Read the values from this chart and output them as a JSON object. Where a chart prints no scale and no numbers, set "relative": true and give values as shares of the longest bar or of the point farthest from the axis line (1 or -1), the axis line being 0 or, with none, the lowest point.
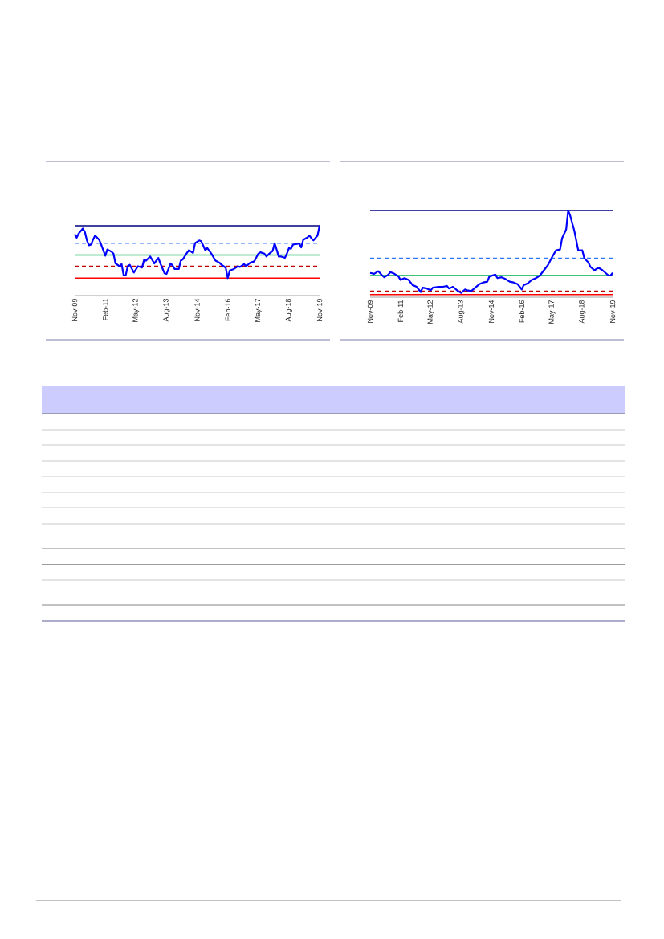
{
  "chart_data": [
    {
      "type": "line",
      "relative": true,
      "color": "#0000ff",
      "x": [
        "2009-11",
        "2009-12",
        "2010-01",
        "2010-03",
        "2010-04",
        "2010-05",
        "2010-06",
        "2010-07",
        "2010-08",
        "2010-09",
        "2010-11",
        "2010-12",
        "2011-02",
        "2011-03",
        "2011-05",
        "2011-06",
        "2011-07",
        "2011-09",
        "2011-10",
        "2011-11",
        "2011-12",
        "2012-01",
        "2012-02",
        "2012-04",
        "2012-06",
        "2012-08",
        "2012-09",
        "2012-10",
        "2012-12",
        "2013-02",
        "2013-04",
        "2013-05",
        "2013-07",
        "2013-08",
        "2013-10",
        "2013-11",
        "2013-12",
        "2014-02",
        "2014-03",
        "2014-04",
        "2014-06",
        "2014-07",
        "2014-09",
        "2014-10",
        "2014-12",
        "2015-01",
        "2015-03",
        "2015-04",
        "2015-06",
        "2015-08",
        "2015-10",
        "2015-11",
        "2016-01",
        "2016-02",
        "2016-03",
        "2016-05",
        "2016-07",
        "2016-08",
        "2016-10",
        "2016-11",
        "2017-01",
        "2017-03",
        "2017-05",
        "2017-06",
        "2017-08",
        "2017-09",
        "2017-10",
        "2017-12",
        "2018-01",
        "2018-03",
        "2018-04",
        "2018-05",
        "2018-06",
        "2018-07",
        "2018-08",
        "2018-09",
        "2018-10",
        "2018-12",
        "2019-01",
        "2019-02",
        "2019-03",
        "2019-05",
        "2019-06",
        "2019-07",
        "2019-08",
        "2019-10",
        "2019-11"
      ],
      "values": [
        0.88,
        0.83,
        0.89,
        0.96,
        0.91,
        0.79,
        0.72,
        0.73,
        0.8,
        0.86,
        0.8,
        0.73,
        0.57,
        0.66,
        0.63,
        0.6,
        0.46,
        0.42,
        0.45,
        0.29,
        0.29,
        0.42,
        0.44,
        0.33,
        0.42,
        0.4,
        0.51,
        0.5,
        0.56,
        0.46,
        0.54,
        0.46,
        0.32,
        0.31,
        0.46,
        0.43,
        0.38,
        0.38,
        0.5,
        0.52,
        0.61,
        0.65,
        0.61,
        0.75,
        0.79,
        0.78,
        0.65,
        0.68,
        0.6,
        0.5,
        0.47,
        0.44,
        0.4,
        0.25,
        0.36,
        0.38,
        0.42,
        0.41,
        0.45,
        0.42,
        0.47,
        0.49,
        0.6,
        0.62,
        0.6,
        0.56,
        0.59,
        0.64,
        0.75,
        0.56,
        0.56,
        0.55,
        0.54,
        0.6,
        0.68,
        0.67,
        0.73,
        0.74,
        0.75,
        0.69,
        0.8,
        0.83,
        0.86,
        0.82,
        0.79,
        0.86,
        1.0
      ],
      "xlim": [
        "2009-11",
        "2019-11"
      ],
      "xticks": [
        {
          "value": "2009-11",
          "label": "Nov-09"
        },
        {
          "value": "2011-02",
          "label": "Feb-11"
        },
        {
          "value": "2012-05",
          "label": "May-12"
        },
        {
          "value": "2013-08",
          "label": "Aug-13"
        },
        {
          "value": "2014-11",
          "label": "Nov-14"
        },
        {
          "value": "2016-02",
          "label": "Feb-16"
        },
        {
          "value": "2017-05",
          "label": "May-17"
        },
        {
          "value": "2018-08",
          "label": "Aug-18"
        },
        {
          "value": "2019-11",
          "label": "Nov-19"
        }
      ],
      "ref_lines": [
        {
          "axis": "y",
          "value": 1.0,
          "color": "#000080",
          "line_style": "solid"
        },
        {
          "axis": "y",
          "value": 0.75,
          "color": "#3377ff",
          "line_style": "dashed"
        },
        {
          "axis": "y",
          "value": 0.58,
          "color": "#00b050",
          "line_style": "solid"
        },
        {
          "axis": "y",
          "value": 0.42,
          "color": "#c00000",
          "line_style": "dashed"
        },
        {
          "axis": "y",
          "value": 0.25,
          "color": "#ff0000",
          "line_style": "solid"
        }
      ]
    },
    {
      "type": "line",
      "relative": true,
      "color": "#0000ff",
      "x": [
        "2009-11",
        "2010-01",
        "2010-03",
        "2010-05",
        "2010-06",
        "2010-08",
        "2010-09",
        "2010-11",
        "2011-01",
        "2011-02",
        "2011-04",
        "2011-06",
        "2011-08",
        "2011-10",
        "2011-12",
        "2012-01",
        "2012-03",
        "2012-05",
        "2012-06",
        "2012-09",
        "2012-11",
        "2013-01",
        "2013-02",
        "2013-04",
        "2013-06",
        "2013-08",
        "2013-10",
        "2013-11",
        "2014-01",
        "2014-03",
        "2014-05",
        "2014-07",
        "2014-09",
        "2014-10",
        "2015-01",
        "2015-02",
        "2015-04",
        "2015-06",
        "2015-08",
        "2015-10",
        "2015-12",
        "2016-02",
        "2016-03",
        "2016-05",
        "2016-07",
        "2016-09",
        "2016-11",
        "2017-01",
        "2017-03",
        "2017-05",
        "2017-07",
        "2017-09",
        "2017-10",
        "2017-12",
        "2018-01",
        "2018-02",
        "2018-04",
        "2018-06",
        "2018-08",
        "2018-09",
        "2018-11",
        "2018-12",
        "2019-02",
        "2019-04",
        "2019-06",
        "2019-07",
        "2019-09",
        "2019-10",
        "2019-11"
      ],
      "values": [
        0.28,
        0.27,
        0.3,
        0.25,
        0.23,
        0.26,
        0.29,
        0.27,
        0.24,
        0.2,
        0.22,
        0.2,
        0.14,
        0.12,
        0.06,
        0.11,
        0.1,
        0.08,
        0.11,
        0.12,
        0.12,
        0.13,
        0.1,
        0.12,
        0.08,
        0.05,
        0.09,
        0.08,
        0.07,
        0.11,
        0.15,
        0.17,
        0.18,
        0.24,
        0.26,
        0.22,
        0.23,
        0.21,
        0.18,
        0.17,
        0.15,
        0.09,
        0.14,
        0.16,
        0.2,
        0.22,
        0.25,
        0.31,
        0.37,
        0.46,
        0.54,
        0.55,
        0.68,
        0.78,
        1.0,
        0.94,
        0.77,
        0.54,
        0.54,
        0.45,
        0.4,
        0.35,
        0.31,
        0.34,
        0.31,
        0.29,
        0.25,
        0.25,
        0.28
      ],
      "xlim": [
        "2009-11",
        "2019-11"
      ],
      "xticks": [
        {
          "value": "2009-11",
          "label": "Nov-09"
        },
        {
          "value": "2011-02",
          "label": "Feb-11"
        },
        {
          "value": "2012-05",
          "label": "May-12"
        },
        {
          "value": "2013-08",
          "label": "Aug-13"
        },
        {
          "value": "2014-11",
          "label": "Nov-14"
        },
        {
          "value": "2016-02",
          "label": "Feb-16"
        },
        {
          "value": "2017-05",
          "label": "May-17"
        },
        {
          "value": "2018-08",
          "label": "Aug-18"
        },
        {
          "value": "2019-11",
          "label": "Nov-19"
        }
      ],
      "ref_lines": [
        {
          "axis": "y",
          "value": 1.0,
          "color": "#000080",
          "line_style": "solid"
        },
        {
          "axis": "y",
          "value": 0.45,
          "color": "#3377ff",
          "line_style": "dashed"
        },
        {
          "axis": "y",
          "value": 0.25,
          "color": "#00b050",
          "line_style": "solid"
        },
        {
          "axis": "y",
          "value": 0.07,
          "color": "#c00000",
          "line_style": "dashed"
        },
        {
          "axis": "y",
          "value": 0.03,
          "color": "#ff0000",
          "line_style": "solid"
        }
      ]
    }
  ]
}
